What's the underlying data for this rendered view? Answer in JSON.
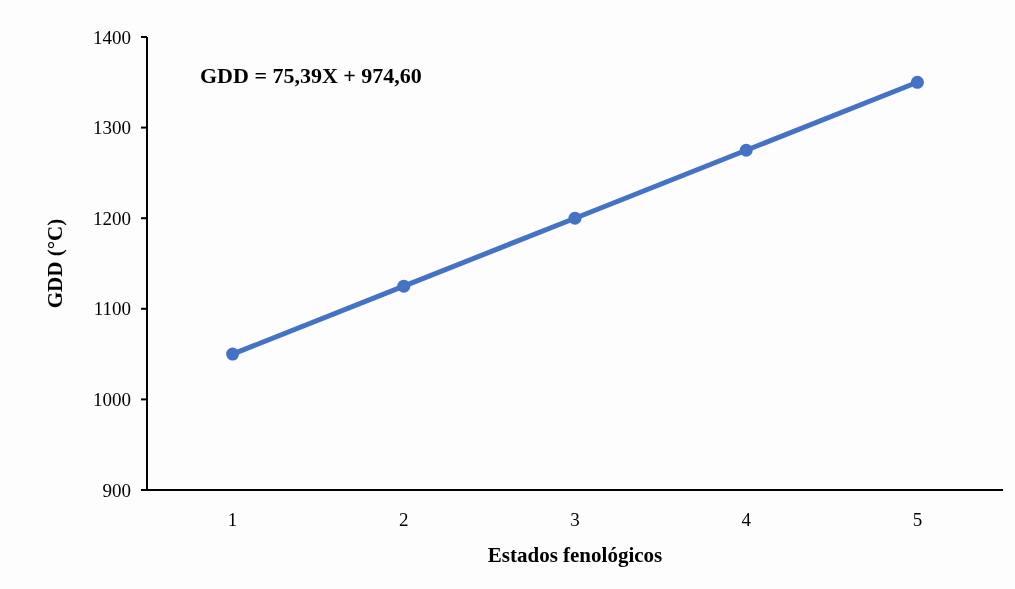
{
  "chart_data": {
    "type": "line",
    "xlabel": "Estados fenológicos",
    "ylabel": "GDD (°C)",
    "categories": [
      "1",
      "2",
      "3",
      "4",
      "5"
    ],
    "series": [
      {
        "color": "#4472c4",
        "values": [
          1050,
          1125,
          1200,
          1275,
          1350
        ]
      }
    ],
    "ylim": [
      900,
      1400
    ],
    "yticks": [
      900,
      1000,
      1100,
      1200,
      1300,
      1400
    ],
    "annotations": [
      "GDD = 75,39X + 974,60"
    ],
    "marker": "circle"
  }
}
